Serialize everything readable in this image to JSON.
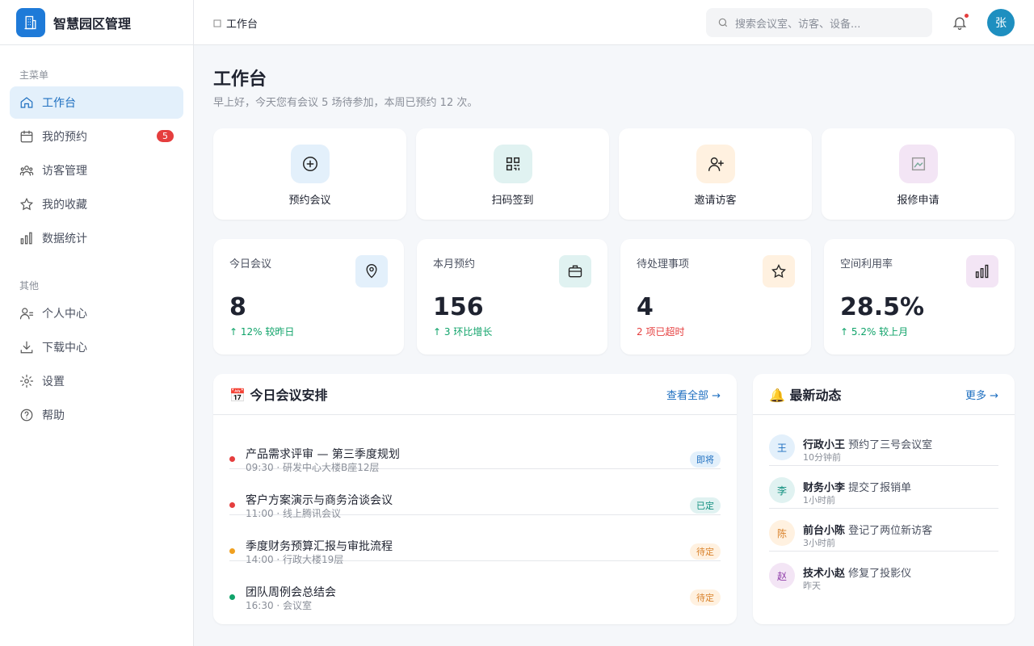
{
  "sidebar": {
    "brand": "智慧园区管理",
    "sections": [
      {
        "title": "主菜单",
        "items": [
          {
            "label": "工作台"
          },
          {
            "label": "我的预约",
            "badge": 5
          },
          {
            "label": "访客管理"
          },
          {
            "label": "我的收藏"
          },
          {
            "label": "数据统计"
          }
        ]
      },
      {
        "title": "其他",
        "items": [
          {
            "label": "个人中心"
          },
          {
            "label": "下载中心"
          },
          {
            "label": "设置"
          },
          {
            "label": "帮助"
          }
        ]
      }
    ]
  },
  "topbar": {
    "breadcrumb": "工作台",
    "search_placeholder": "搜索会议室、访客、设备...",
    "avatar": "张"
  },
  "page": {
    "title": "工作台",
    "subtitle": "早上好，今天您有会议 5 场待参加，本周已预约 12 次。"
  },
  "quick_actions": [
    "预约会议",
    "扫码签到",
    "邀请访客",
    "报修申请"
  ],
  "stats": [
    {
      "label": "今日会议",
      "value": "8",
      "delta": "↑ 12% 较昨日"
    },
    {
      "label": "本月预约",
      "value": "156",
      "delta": "↑ 3 环比增长"
    },
    {
      "label": "待处理事项",
      "value": "4",
      "delta": "2 项已超时"
    },
    {
      "label": "空间利用率",
      "value": "28.5%",
      "delta": "↑ 5.2% 较上月"
    }
  ],
  "schedule": {
    "title": "📅 今日会议安排",
    "link": "查看全部 →",
    "items": [
      {
        "title": "产品需求评审 — 第三季度规划",
        "meta": "09:30 · 研发中心大楼B座12层",
        "tag": "即将"
      },
      {
        "title": "客户方案演示与商务洽谈会议",
        "meta": "11:00 · 线上腾讯会议",
        "tag": "已定"
      },
      {
        "title": "季度财务预算汇报与审批流程",
        "meta": "14:00 · 行政大楼19层",
        "tag": "待定"
      },
      {
        "title": "团队周例会总结会",
        "meta": "16:30 · 会议室",
        "tag": "待定"
      }
    ]
  },
  "activity": {
    "title": "🔔 最新动态",
    "link": "更多 →",
    "items": [
      {
        "avatar": "王",
        "name": "行政小王",
        "action": "预约了三号会议室",
        "time": "10分钟前"
      },
      {
        "avatar": "李",
        "name": "财务小李",
        "action": "提交了报销单",
        "time": "1小时前"
      },
      {
        "avatar": "陈",
        "name": "前台小陈",
        "action": "登记了两位新访客",
        "time": "3小时前"
      },
      {
        "avatar": "赵",
        "name": "技术小赵",
        "action": "修复了投影仪",
        "time": "昨天"
      }
    ]
  }
}
